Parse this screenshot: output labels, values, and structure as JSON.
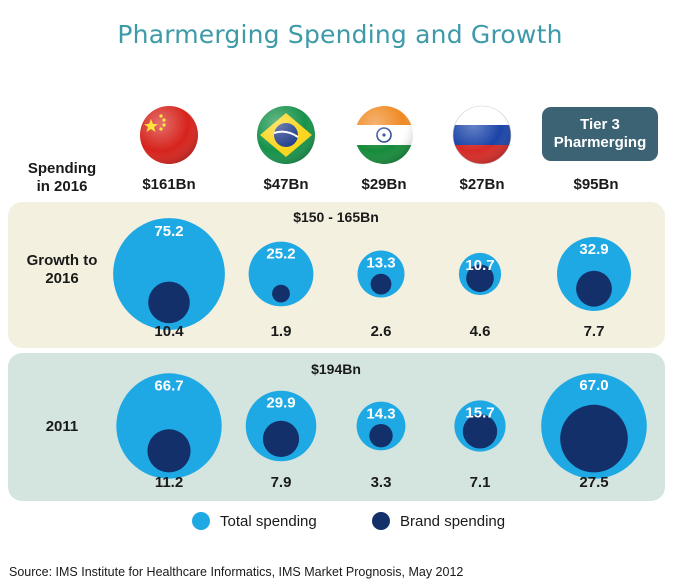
{
  "title": "Pharmerging Spending and Growth",
  "row_labels": {
    "spending": [
      "Spending",
      "in 2016"
    ],
    "growth": [
      "Growth to",
      "2016"
    ],
    "year2011": "2011"
  },
  "band_totals": {
    "growth": "$150 - 165Bn",
    "year2011": "$194Bn"
  },
  "tier3_badge": [
    "Tier 3",
    "Pharmerging"
  ],
  "legend": {
    "total": "Total spending",
    "brand": "Brand spending"
  },
  "source": "Source: IMS Institute for Healthcare Informatics, IMS Market Prognosis, May 2012",
  "colors": {
    "total": "#1fa9e4",
    "brand": "#13306b",
    "title": "#3d9aa8",
    "band_top": "#f3f0df",
    "band_bottom": "#d4e5df",
    "badge": "#3b6373"
  },
  "chart_data": {
    "type": "bubble",
    "categories": [
      "China",
      "Brazil",
      "India",
      "Russia",
      "Tier 3 Pharmerging"
    ],
    "icons": [
      "china-flag-icon",
      "brazil-flag-icon",
      "india-flag-icon",
      "russia-flag-icon",
      "tier3-badge"
    ],
    "spending_2016": [
      "$161Bn",
      "$47Bn",
      "$29Bn",
      "$27Bn",
      "$95Bn"
    ],
    "series": [
      {
        "group": "Growth to 2016",
        "total_spending": [
          75.2,
          25.2,
          13.3,
          10.7,
          32.9
        ],
        "brand_spending": [
          10.4,
          1.9,
          2.6,
          4.6,
          7.7
        ]
      },
      {
        "group": "2011",
        "total_spending": [
          66.7,
          29.9,
          14.3,
          15.7,
          67.0
        ],
        "brand_spending": [
          11.2,
          7.9,
          3.3,
          7.1,
          27.5
        ]
      }
    ]
  }
}
